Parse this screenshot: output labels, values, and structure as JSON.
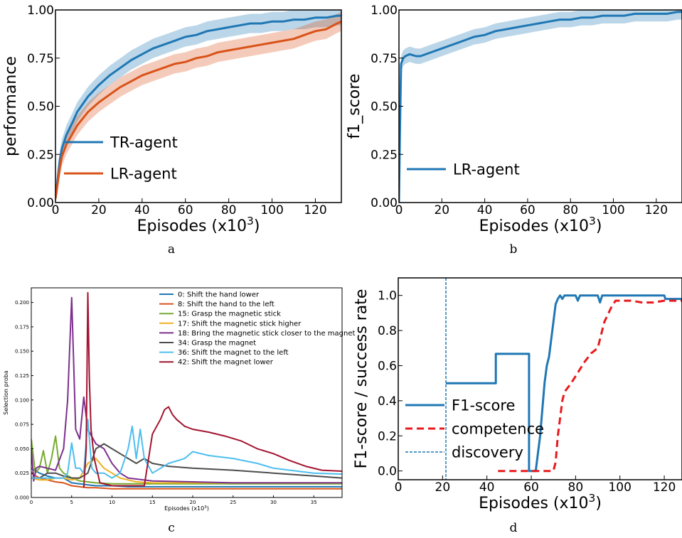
{
  "chart_data": [
    {
      "type": "line",
      "panel_label": "a",
      "xlabel": "Episodes (x10",
      "xlabel_sup": "3",
      "xlabel_close": ")",
      "ylabel": "performance",
      "xlim": [
        0,
        132
      ],
      "ylim": [
        0,
        1
      ],
      "xticks": [
        "0",
        "20",
        "40",
        "60",
        "80",
        "100",
        "120"
      ],
      "yticks": [
        "0.00",
        "0.25",
        "0.50",
        "0.75",
        "1.00"
      ],
      "legend": {
        "position": "bottom-left"
      },
      "series": [
        {
          "name": "TR-agent",
          "color": "#1f77b4",
          "x": [
            0,
            1,
            2,
            3,
            5,
            8,
            10,
            15,
            20,
            25,
            30,
            35,
            40,
            45,
            50,
            55,
            60,
            65,
            70,
            75,
            80,
            85,
            90,
            95,
            100,
            105,
            110,
            115,
            120,
            125,
            130,
            132
          ],
          "y": [
            0.02,
            0.12,
            0.22,
            0.28,
            0.35,
            0.42,
            0.47,
            0.55,
            0.61,
            0.66,
            0.7,
            0.74,
            0.77,
            0.8,
            0.82,
            0.84,
            0.86,
            0.87,
            0.89,
            0.9,
            0.91,
            0.92,
            0.93,
            0.93,
            0.94,
            0.94,
            0.95,
            0.95,
            0.96,
            0.96,
            0.97,
            0.97
          ],
          "band": 0.05
        },
        {
          "name": "LR-agent",
          "color": "#d95319",
          "x": [
            0,
            1,
            2,
            3,
            5,
            8,
            10,
            15,
            20,
            25,
            30,
            35,
            40,
            45,
            50,
            55,
            60,
            65,
            70,
            75,
            80,
            85,
            90,
            95,
            100,
            105,
            110,
            115,
            120,
            125,
            130,
            132
          ],
          "y": [
            0.02,
            0.1,
            0.18,
            0.24,
            0.3,
            0.36,
            0.4,
            0.47,
            0.52,
            0.56,
            0.6,
            0.63,
            0.66,
            0.68,
            0.7,
            0.72,
            0.73,
            0.75,
            0.76,
            0.78,
            0.79,
            0.8,
            0.81,
            0.82,
            0.83,
            0.84,
            0.85,
            0.87,
            0.89,
            0.9,
            0.93,
            0.94
          ],
          "band": 0.05
        }
      ]
    },
    {
      "type": "line",
      "panel_label": "b",
      "xlabel": "Episodes (x10",
      "xlabel_sup": "3",
      "xlabel_close": ")",
      "ylabel": "f1_score",
      "xlim": [
        0,
        132
      ],
      "ylim": [
        0,
        1
      ],
      "xticks": [
        "0",
        "20",
        "40",
        "60",
        "80",
        "100",
        "120"
      ],
      "yticks": [
        "0.00",
        "0.25",
        "0.50",
        "0.75",
        "1.00"
      ],
      "legend": {
        "position": "bottom-left"
      },
      "series": [
        {
          "name": "LR-agent",
          "color": "#1f77b4",
          "x": [
            0,
            0.5,
            1,
            2,
            3,
            5,
            8,
            10,
            15,
            20,
            25,
            30,
            35,
            40,
            45,
            50,
            55,
            60,
            65,
            70,
            75,
            80,
            85,
            90,
            95,
            100,
            105,
            110,
            115,
            120,
            125,
            130,
            132
          ],
          "y": [
            0,
            0.4,
            0.72,
            0.75,
            0.76,
            0.77,
            0.76,
            0.76,
            0.78,
            0.8,
            0.82,
            0.84,
            0.86,
            0.87,
            0.89,
            0.9,
            0.91,
            0.92,
            0.93,
            0.94,
            0.95,
            0.95,
            0.96,
            0.96,
            0.97,
            0.97,
            0.97,
            0.98,
            0.98,
            0.98,
            0.98,
            0.99,
            0.99
          ],
          "band": 0.04
        }
      ]
    },
    {
      "type": "line",
      "panel_label": "c",
      "xlabel": "Episodes (x10",
      "xlabel_sup": "3",
      "xlabel_close": ")",
      "ylabel": "Selection proba",
      "xlim": [
        0,
        38.5
      ],
      "ylim": [
        0,
        0.215
      ],
      "xticks": [
        "0",
        "5",
        "10",
        "15",
        "20",
        "25",
        "30",
        "35"
      ],
      "yticks": [
        "0.000",
        "0.025",
        "0.050",
        "0.075",
        "0.100",
        "0.125",
        "0.150",
        "0.175",
        "0.200"
      ],
      "legend": {
        "position": "top-right"
      },
      "series": [
        {
          "name": "0: Shift the hand lower",
          "color": "#1f77b4",
          "x": [
            0,
            1,
            2,
            3,
            4,
            5,
            6,
            7,
            8,
            10,
            12,
            15,
            20,
            25,
            30,
            35,
            38.5
          ],
          "y": [
            0.03,
            0.025,
            0.022,
            0.02,
            0.02,
            0.015,
            0.014,
            0.013,
            0.012,
            0.012,
            0.011,
            0.011,
            0.011,
            0.011,
            0.011,
            0.011,
            0.011
          ]
        },
        {
          "name": "8: Shift the hand to the left",
          "color": "#d95319",
          "x": [
            0,
            1,
            2,
            3,
            4,
            5,
            6,
            7,
            8,
            10,
            12,
            15,
            20,
            25,
            30,
            35,
            38.5
          ],
          "y": [
            0.025,
            0.02,
            0.018,
            0.016,
            0.015,
            0.012,
            0.011,
            0.01,
            0.01,
            0.009,
            0.009,
            0.009,
            0.009,
            0.009,
            0.009,
            0.009,
            0.009
          ]
        },
        {
          "name": "15: Grasp the magnetic stick",
          "color": "#77ac30",
          "x": [
            0,
            0.5,
            1,
            1.5,
            2,
            2.5,
            3,
            3.5,
            4,
            5,
            6,
            7,
            8,
            10,
            12,
            15,
            20,
            25,
            30,
            38.5
          ],
          "y": [
            0.06,
            0.025,
            0.03,
            0.048,
            0.025,
            0.04,
            0.063,
            0.03,
            0.025,
            0.02,
            0.017,
            0.016,
            0.015,
            0.014,
            0.014,
            0.014,
            0.014,
            0.014,
            0.014,
            0.014
          ]
        },
        {
          "name": "17: Shift the magnetic stick higher",
          "color": "#edb120",
          "x": [
            0,
            1,
            2,
            3,
            4,
            5,
            6,
            7,
            8,
            9,
            10,
            11,
            12,
            13,
            15,
            20,
            25,
            30,
            38.5
          ],
          "y": [
            0.02,
            0.018,
            0.018,
            0.02,
            0.02,
            0.018,
            0.02,
            0.035,
            0.04,
            0.03,
            0.025,
            0.02,
            0.018,
            0.016,
            0.015,
            0.015,
            0.015,
            0.015,
            0.015
          ]
        },
        {
          "name": "18: Bring the magnetic stick closer to the magnet",
          "color": "#7e2f8e",
          "x": [
            0,
            0.3,
            0.6,
            1,
            2,
            3,
            4,
            4.5,
            5,
            5.5,
            6,
            6.5,
            7,
            8,
            9,
            10,
            11,
            12,
            15,
            20,
            25,
            30,
            35,
            38.5
          ],
          "y": [
            0.05,
            0.017,
            0.03,
            0.032,
            0.03,
            0.028,
            0.05,
            0.1,
            0.205,
            0.07,
            0.06,
            0.103,
            0.07,
            0.055,
            0.05,
            0.035,
            0.025,
            0.02,
            0.017,
            0.016,
            0.015,
            0.015,
            0.015,
            0.015
          ]
        },
        {
          "name": "34: Grasp the magnet",
          "color": "#4d4d4d",
          "x": [
            0,
            1,
            2,
            3,
            4,
            5,
            6,
            7,
            8,
            9,
            10,
            11,
            12,
            13,
            14,
            15,
            17,
            20,
            25,
            30,
            35,
            38.5
          ],
          "y": [
            0.02,
            0.02,
            0.025,
            0.025,
            0.022,
            0.02,
            0.02,
            0.025,
            0.05,
            0.055,
            0.05,
            0.045,
            0.04,
            0.035,
            0.04,
            0.035,
            0.032,
            0.03,
            0.028,
            0.025,
            0.022,
            0.02
          ]
        },
        {
          "name": "36: Shift the magnet to the left",
          "color": "#4dbeee",
          "x": [
            0,
            1,
            2,
            3,
            4,
            4.5,
            5,
            5.5,
            6,
            6.5,
            7,
            7.5,
            8,
            9,
            10,
            11,
            12,
            12.5,
            13,
            13.5,
            14,
            15,
            17,
            19,
            20,
            22,
            25,
            28,
            30,
            33,
            35,
            38.5
          ],
          "y": [
            0.02,
            0.02,
            0.02,
            0.02,
            0.02,
            0.025,
            0.056,
            0.03,
            0.03,
            0.025,
            0.08,
            0.03,
            0.025,
            0.025,
            0.02,
            0.025,
            0.05,
            0.073,
            0.04,
            0.07,
            0.04,
            0.025,
            0.035,
            0.04,
            0.047,
            0.043,
            0.04,
            0.035,
            0.03,
            0.027,
            0.025,
            0.024
          ]
        },
        {
          "name": "42: Shift the magnet lower",
          "color": "#a2142f",
          "x": [
            6.5,
            6.8,
            7,
            7.2,
            7.4,
            7.8,
            8.5,
            10,
            12,
            14,
            15,
            16,
            16.5,
            17,
            17.5,
            18,
            19,
            20,
            22,
            24,
            26,
            28,
            30,
            32,
            34,
            36,
            38.5
          ],
          "y": [
            0.01,
            0.05,
            0.21,
            0.12,
            0.07,
            0.04,
            0.015,
            0.012,
            0.012,
            0.012,
            0.065,
            0.08,
            0.09,
            0.093,
            0.085,
            0.08,
            0.073,
            0.07,
            0.067,
            0.063,
            0.058,
            0.05,
            0.045,
            0.038,
            0.032,
            0.028,
            0.027
          ]
        }
      ]
    },
    {
      "type": "line",
      "panel_label": "d",
      "xlabel": "Episodes (x10",
      "xlabel_sup": "3",
      "xlabel_close": ")",
      "ylabel": "F1-score / success rate",
      "xlim": [
        0,
        128
      ],
      "ylim": [
        -0.05,
        1.1
      ],
      "xticks": [
        "0",
        "20",
        "40",
        "60",
        "80",
        "100",
        "120"
      ],
      "yticks": [
        "0.0",
        "0.2",
        "0.4",
        "0.6",
        "0.8",
        "1.0"
      ],
      "legend": {
        "position": "center-left"
      },
      "series": [
        {
          "name": "F1-score",
          "color": "#1f77b4",
          "style": "solid",
          "x": [
            21.5,
            21.5,
            44,
            44,
            59,
            59,
            60,
            61,
            62,
            63,
            64,
            65,
            66,
            67,
            68,
            69,
            70,
            71,
            72,
            73,
            74,
            75,
            76,
            80,
            81,
            82,
            90,
            91,
            92,
            93,
            120,
            120.5,
            128
          ],
          "y": [
            0.5,
            0.5,
            0.5,
            0.667,
            0.667,
            0.0,
            0.0,
            0.0,
            0.0,
            0.1,
            0.2,
            0.35,
            0.5,
            0.6,
            0.65,
            0.75,
            0.85,
            0.95,
            0.98,
            1.0,
            0.98,
            1.0,
            1.0,
            1.0,
            0.97,
            1.0,
            1.0,
            0.96,
            1.0,
            1.0,
            1.0,
            0.98,
            0.98
          ]
        },
        {
          "name": "competence",
          "color": "#e8191c",
          "style": "dashed",
          "x": [
            45,
            70,
            71,
            72,
            74,
            75,
            78,
            81,
            84,
            87,
            90,
            93,
            96,
            98,
            100,
            105,
            110,
            115,
            120,
            125,
            128
          ],
          "y": [
            0.0,
            0.0,
            0.05,
            0.2,
            0.4,
            0.45,
            0.5,
            0.56,
            0.62,
            0.67,
            0.7,
            0.85,
            0.93,
            0.97,
            0.97,
            0.97,
            0.96,
            0.96,
            0.97,
            0.97,
            0.97
          ]
        },
        {
          "name": "discovery",
          "color": "#1f77b4",
          "style": "vline",
          "x": [
            21.5
          ]
        }
      ]
    }
  ]
}
